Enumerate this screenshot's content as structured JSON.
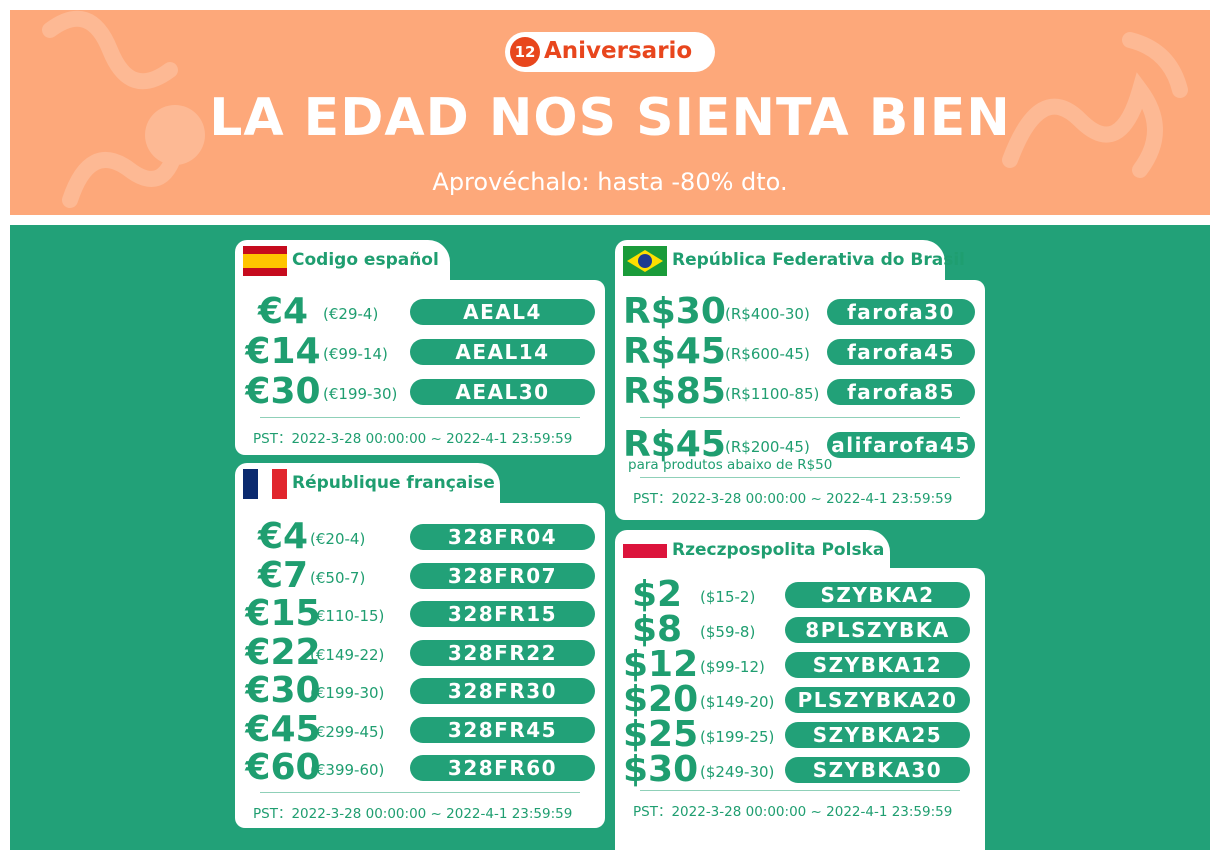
{
  "banner": {
    "badge_number": "12",
    "badge_text": "Aniversario",
    "title": "LA EDAD NOS SIENTA BIEN",
    "subtitle": "Aprovéchalo: hasta -80% dto."
  },
  "cards": [
    {
      "name": "Codigo español",
      "rows": [
        {
          "amount": "€4",
          "condition": "(€29-4)",
          "code": "AEAL4"
        },
        {
          "amount": "€14",
          "condition": "(€99-14)",
          "code": "AEAL14"
        },
        {
          "amount": "€30",
          "condition": "(€199-30)",
          "code": "AEAL30"
        }
      ],
      "period": "PST：2022-3-28 00:00:00 ~ 2022-4-1 23:59:59"
    },
    {
      "name": "République française",
      "rows": [
        {
          "amount": "€4",
          "condition": "(€20-4)",
          "code": "328FR04"
        },
        {
          "amount": "€7",
          "condition": "(€50-7)",
          "code": "328FR07"
        },
        {
          "amount": "€15",
          "condition": "(€110-15)",
          "code": "328FR15"
        },
        {
          "amount": "€22",
          "condition": "(€149-22)",
          "code": "328FR22"
        },
        {
          "amount": "€30",
          "condition": "(€199-30)",
          "code": "328FR30"
        },
        {
          "amount": "€45",
          "condition": "(€299-45)",
          "code": "328FR45"
        },
        {
          "amount": "€60",
          "condition": "(€399-60)",
          "code": "328FR60"
        }
      ],
      "period": "PST：2022-3-28 00:00:00 ~ 2022-4-1 23:59:59"
    },
    {
      "name": "República Federativa do Brasil",
      "rows": [
        {
          "amount": "R$30",
          "condition": "(R$400-30)",
          "code": "farofa30"
        },
        {
          "amount": "R$45",
          "condition": "(R$600-45)",
          "code": "farofa45"
        },
        {
          "amount": "R$85",
          "condition": "(R$1100-85)",
          "code": "farofa85"
        }
      ],
      "extra": {
        "amount": "R$45",
        "condition": "(R$200-45)",
        "code": "alifarofa45",
        "note": "para produtos abaixo de R$50"
      },
      "period": "PST：2022-3-28 00:00:00 ~ 2022-4-1 23:59:59"
    },
    {
      "name": "Rzeczpospolita Polska",
      "rows": [
        {
          "amount": "$2",
          "condition": "($15-2)",
          "code": "SZYBKA2"
        },
        {
          "amount": "$8",
          "condition": "($59-8)",
          "code": "8PLSZYBKA"
        },
        {
          "amount": "$12",
          "condition": "($99-12)",
          "code": "SZYBKA12"
        },
        {
          "amount": "$20",
          "condition": "($149-20)",
          "code": "PLSZYBKA20"
        },
        {
          "amount": "$25",
          "condition": "($199-25)",
          "code": "SZYBKA25"
        },
        {
          "amount": "$30",
          "condition": "($249-30)",
          "code": "SZYBKA30"
        }
      ],
      "period": "PST：2022-3-28 00:00:00 ~ 2022-4-1 23:59:59"
    }
  ]
}
